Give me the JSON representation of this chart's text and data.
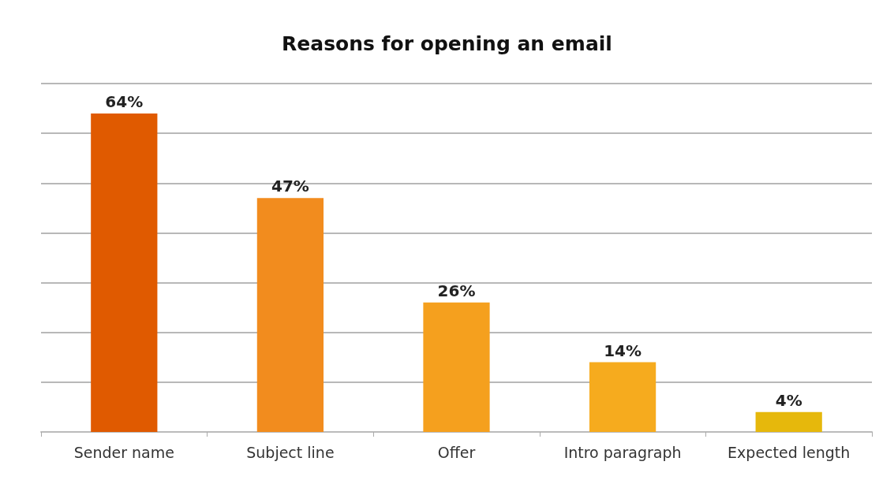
{
  "chart_data": {
    "type": "bar",
    "title": "Reasons for opening an email",
    "categories": [
      "Sender name",
      "Subject line",
      "Offer",
      "Intro paragraph",
      "Expected length"
    ],
    "values": [
      64,
      47,
      26,
      14,
      4
    ],
    "value_labels": [
      "64%",
      "47%",
      "26%",
      "14%",
      "4%"
    ],
    "colors": [
      "#e05a00",
      "#f28c1e",
      "#f5a01e",
      "#f6ab1e",
      "#e6b80c"
    ],
    "ylim": [
      0,
      70
    ],
    "yticks": [
      {
        "value": 0,
        "label": null
      },
      {
        "value": 10,
        "label": null
      },
      {
        "value": 20,
        "label": null
      },
      {
        "value": 30,
        "label": null
      },
      {
        "value": 40,
        "label": null
      },
      {
        "value": 50,
        "label": null
      },
      {
        "value": 60,
        "label": null
      },
      {
        "value": 70,
        "label": null
      }
    ],
    "grid": "y",
    "tick_labels": "x"
  }
}
